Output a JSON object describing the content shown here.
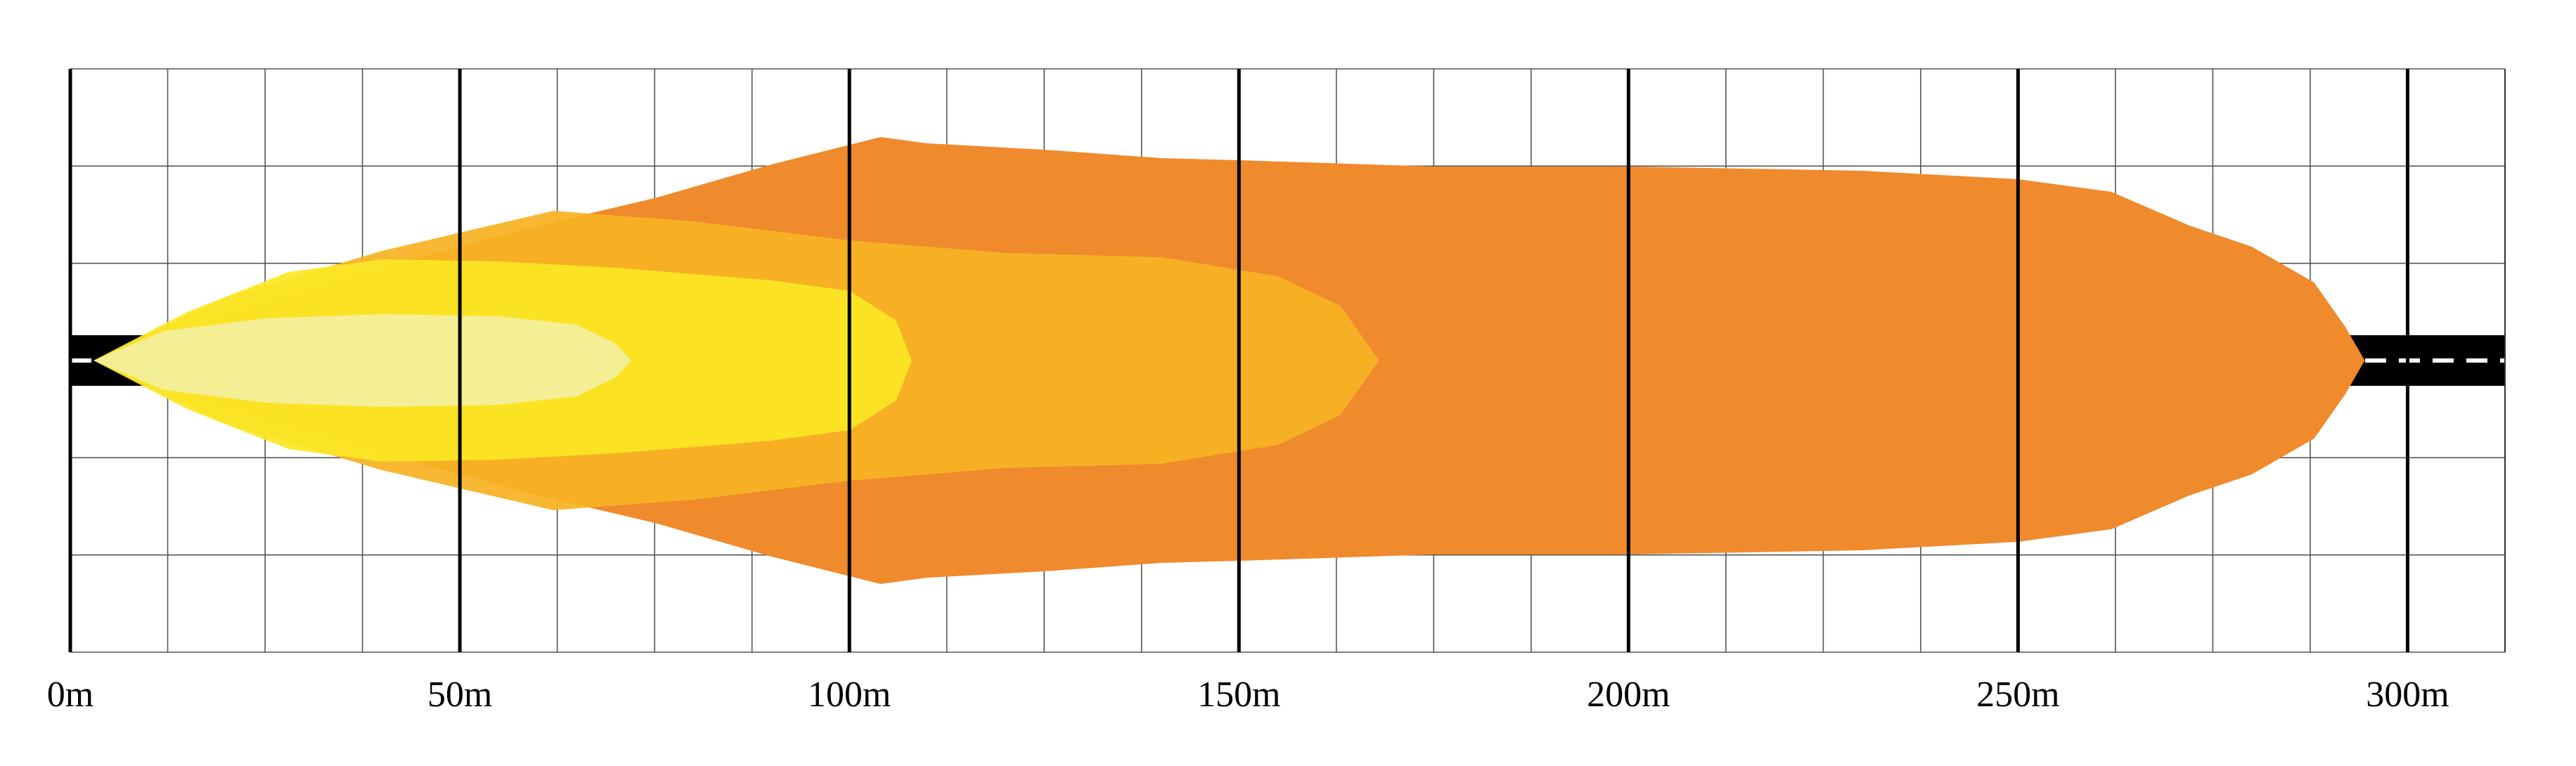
{
  "chart_data": {
    "type": "area",
    "title": "",
    "xlabel": "",
    "ylabel": "",
    "x_unit": "m",
    "xlim": [
      0,
      312.5
    ],
    "x_ticks": [
      {
        "value": 0,
        "label": "0m"
      },
      {
        "value": 50,
        "label": "50m"
      },
      {
        "value": 100,
        "label": "100m"
      },
      {
        "value": 150,
        "label": "150m"
      },
      {
        "value": 200,
        "label": "200m"
      },
      {
        "value": 250,
        "label": "250m"
      },
      {
        "value": 300,
        "label": "300m"
      }
    ],
    "minor_grid_step": 12.5,
    "grid": true,
    "legend": "none",
    "road_color": "#000000",
    "road_marking_color": "#ffffff",
    "series": [
      {
        "color": "#ef8a2d",
        "opacity": 1.0,
        "points": [
          [
            3,
            0
          ],
          [
            20,
            0.22
          ],
          [
            40,
            0.44
          ],
          [
            60,
            0.64
          ],
          [
            75,
            0.77
          ],
          [
            90,
            0.93
          ],
          [
            104,
            1.06
          ],
          [
            110,
            1.03
          ],
          [
            125,
            1.0
          ],
          [
            140,
            0.96
          ],
          [
            150,
            0.95
          ],
          [
            175,
            0.92
          ],
          [
            200,
            0.92
          ],
          [
            230,
            0.9
          ],
          [
            250,
            0.86
          ],
          [
            262,
            0.8
          ],
          [
            272,
            0.64
          ],
          [
            280,
            0.54
          ],
          [
            288,
            0.37
          ],
          [
            292,
            0.16
          ],
          [
            294.5,
            0
          ]
        ]
      },
      {
        "color": "#f7b324",
        "opacity": 0.93,
        "points": [
          [
            3,
            0
          ],
          [
            20,
            0.3
          ],
          [
            40,
            0.52
          ],
          [
            62,
            0.71
          ],
          [
            80,
            0.66
          ],
          [
            100,
            0.57
          ],
          [
            120,
            0.51
          ],
          [
            140,
            0.49
          ],
          [
            155,
            0.4
          ],
          [
            163,
            0.26
          ],
          [
            168,
            0
          ]
        ]
      },
      {
        "color": "#fbe725",
        "opacity": 0.92,
        "points": [
          [
            3,
            0
          ],
          [
            15,
            0.23
          ],
          [
            28,
            0.42
          ],
          [
            40,
            0.48
          ],
          [
            55,
            0.47
          ],
          [
            70,
            0.44
          ],
          [
            90,
            0.38
          ],
          [
            100,
            0.33
          ],
          [
            106,
            0.19
          ],
          [
            108,
            0
          ]
        ]
      },
      {
        "color": "#f3f0a4",
        "opacity": 0.88,
        "points": [
          [
            3,
            0
          ],
          [
            12,
            0.14
          ],
          [
            25,
            0.2
          ],
          [
            40,
            0.22
          ],
          [
            55,
            0.21
          ],
          [
            65,
            0.17
          ],
          [
            70,
            0.08
          ],
          [
            72,
            0
          ]
        ]
      }
    ]
  }
}
